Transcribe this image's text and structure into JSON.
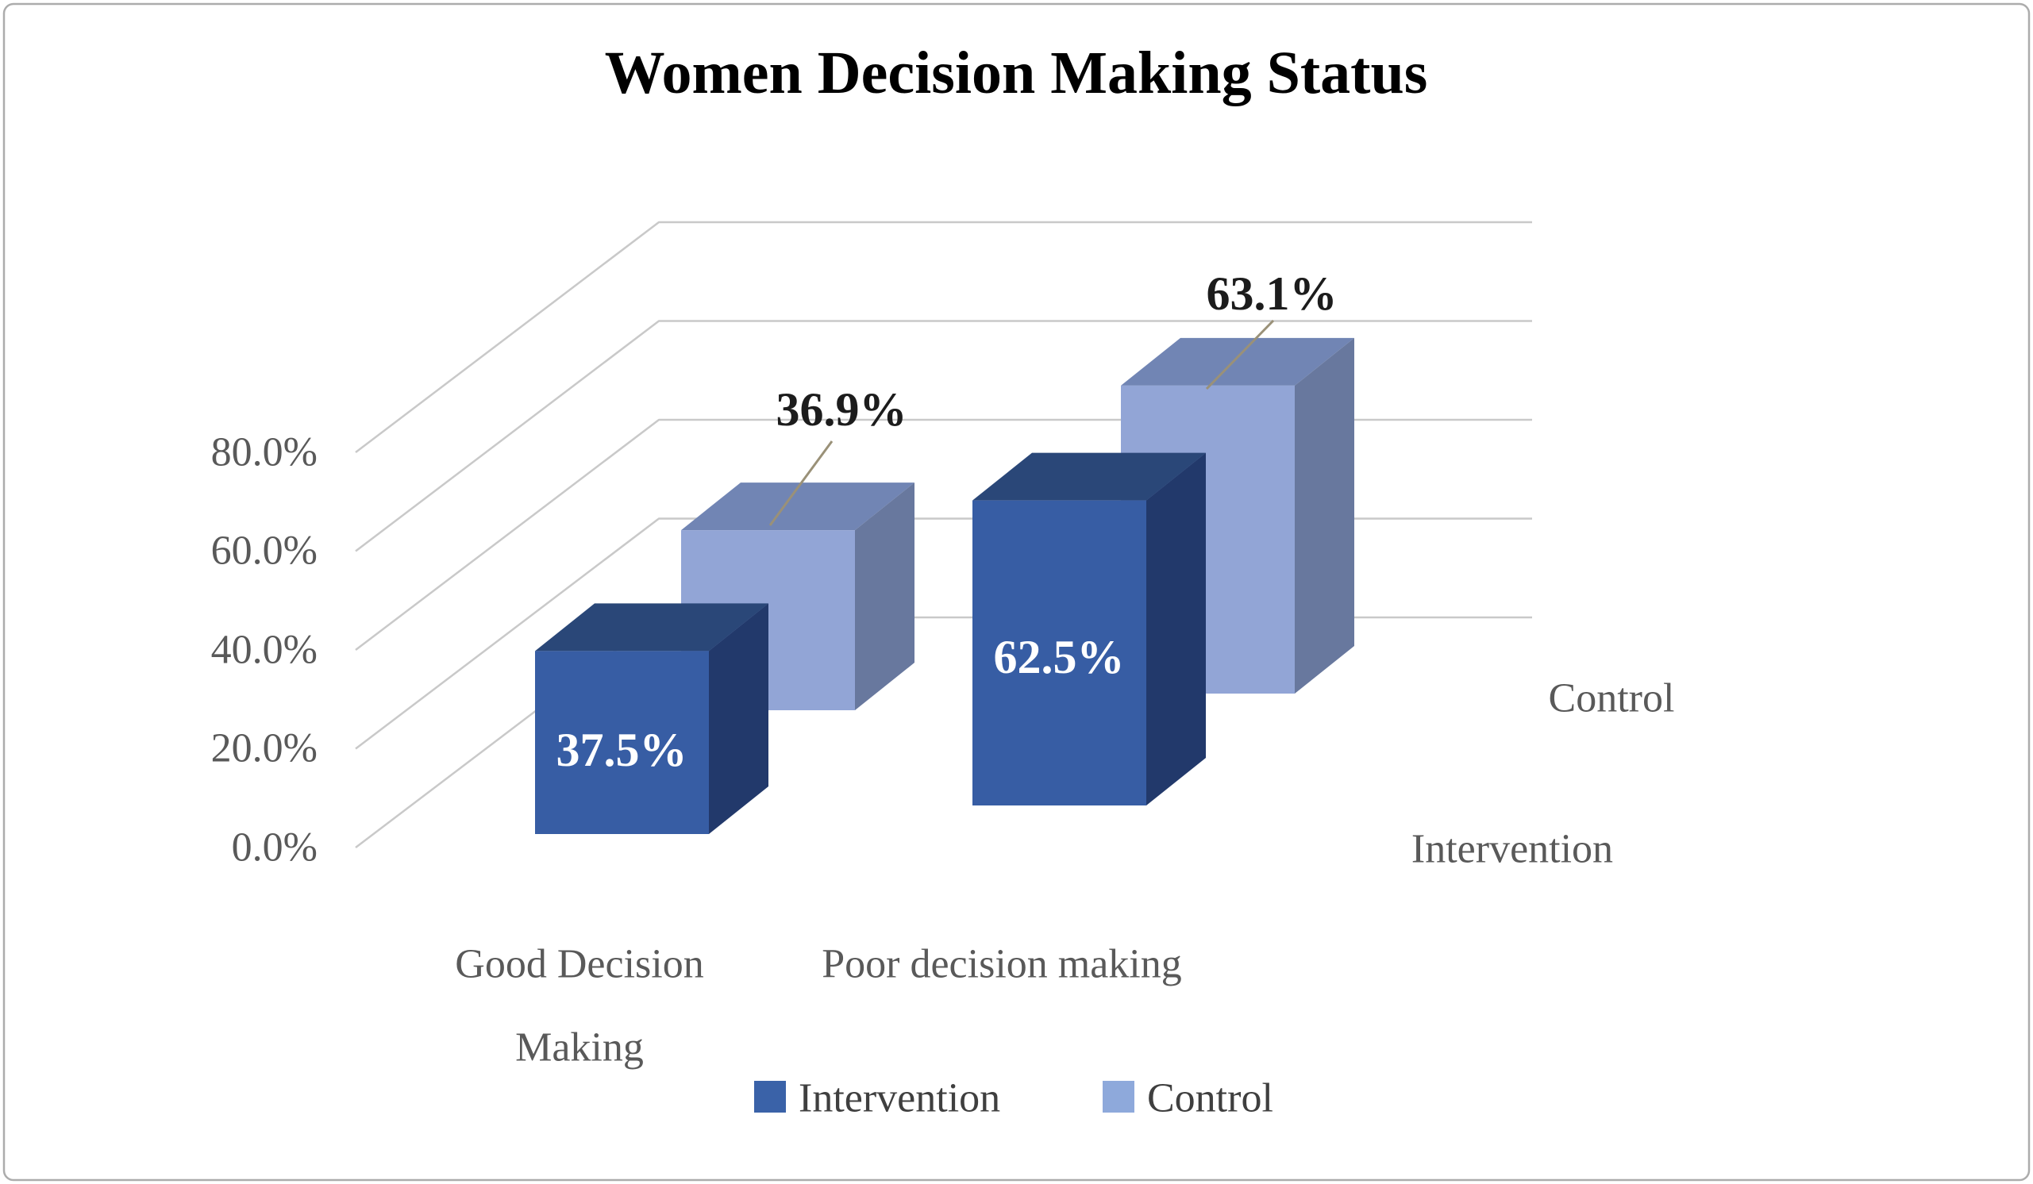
{
  "title": "Women Decision Making Status",
  "chart_data": {
    "type": "bar",
    "variant": "3d-clustered-column",
    "title": "Women Decision Making Status",
    "categories": [
      "Good Decision Making",
      "Poor decision making"
    ],
    "category_display": {
      "cat1_line1": "Good Decision",
      "cat1_line2": "Making",
      "cat2": "Poor decision making"
    },
    "series": [
      {
        "name": "Intervention",
        "values": [
          37.5,
          62.5
        ],
        "data_labels": [
          "37.5%",
          "62.5%"
        ],
        "color": "#3A62A8",
        "faces": {
          "front": "#375DA4",
          "top": "#2A4778",
          "side": "#22396B"
        },
        "label_color": "#FFFFFF"
      },
      {
        "name": "Control",
        "values": [
          36.9,
          63.1
        ],
        "data_labels": [
          "36.9%",
          "63.1%"
        ],
        "color": "#8EA9DB",
        "faces": {
          "front": "#92A5D6",
          "top": "#7185B4",
          "side": "#68789E"
        },
        "label_color": "#1C1C1C"
      }
    ],
    "value_axis": {
      "tick_labels": [
        "0.0%",
        "20.0%",
        "40.0%",
        "60.0%",
        "80.0%"
      ],
      "min": 0,
      "max": 80,
      "step": 20,
      "format": "percent"
    },
    "depth_axis_labels": [
      "Intervention",
      "Control"
    ],
    "legend": {
      "position": "bottom",
      "entries": [
        "Intervention",
        "Control"
      ]
    },
    "grid": true,
    "ylim": [
      0,
      100
    ]
  },
  "colors": {
    "gridline": "#C9C9C9",
    "leader_line": "#9A9178",
    "axis_text": "#595959",
    "legend_text": "#3F3F3F",
    "title_text": "#000000",
    "border": "#ACACAC",
    "background": "#FFFFFF"
  }
}
